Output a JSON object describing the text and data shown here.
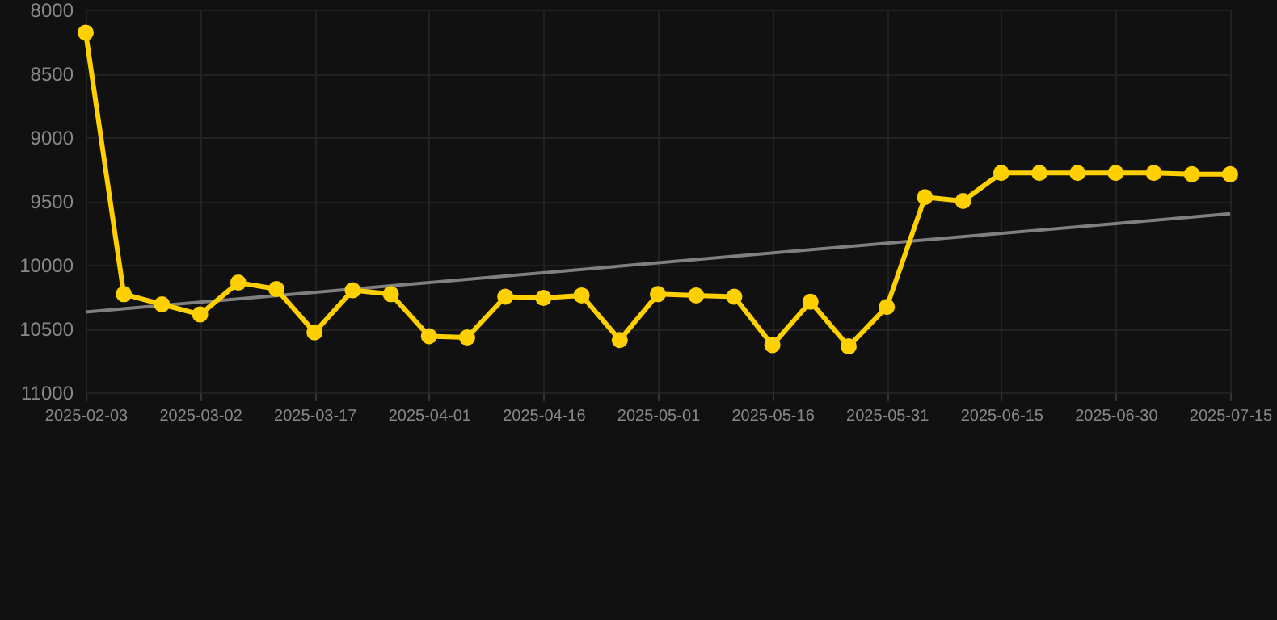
{
  "chart_data": {
    "type": "line",
    "categories": [
      "2025-02-03",
      null,
      null,
      "2025-03-02",
      null,
      null,
      "2025-03-17",
      null,
      null,
      "2025-04-01",
      null,
      null,
      "2025-04-16",
      null,
      null,
      "2025-05-01",
      null,
      null,
      "2025-05-16",
      null,
      null,
      "2025-05-31",
      null,
      null,
      "2025-06-15",
      null,
      null,
      "2025-06-30",
      null,
      null,
      "2025-07-15"
    ],
    "series": [
      {
        "color": "#ffd000",
        "marker": "circle",
        "values": [
          8180,
          10230,
          10310,
          10390,
          10140,
          10190,
          10530,
          10200,
          10230,
          10560,
          10570,
          10250,
          10260,
          10240,
          10590,
          10230,
          10240,
          10250,
          10630,
          10290,
          10640,
          10330,
          9470,
          9500,
          9280,
          9280,
          9280,
          9280,
          9280,
          9290,
          9290
        ]
      },
      {
        "type": "line",
        "color": "#808080",
        "marker": "none",
        "values": [
          10370,
          null,
          null,
          null,
          null,
          null,
          null,
          null,
          null,
          null,
          null,
          null,
          null,
          null,
          null,
          null,
          null,
          null,
          null,
          null,
          null,
          null,
          null,
          null,
          null,
          null,
          null,
          null,
          null,
          null,
          9600
        ]
      }
    ],
    "ylim": [
      11000,
      8000
    ],
    "yticks": [
      8000,
      8500,
      9000,
      9500,
      10000,
      10500,
      11000
    ],
    "grid": true
  }
}
